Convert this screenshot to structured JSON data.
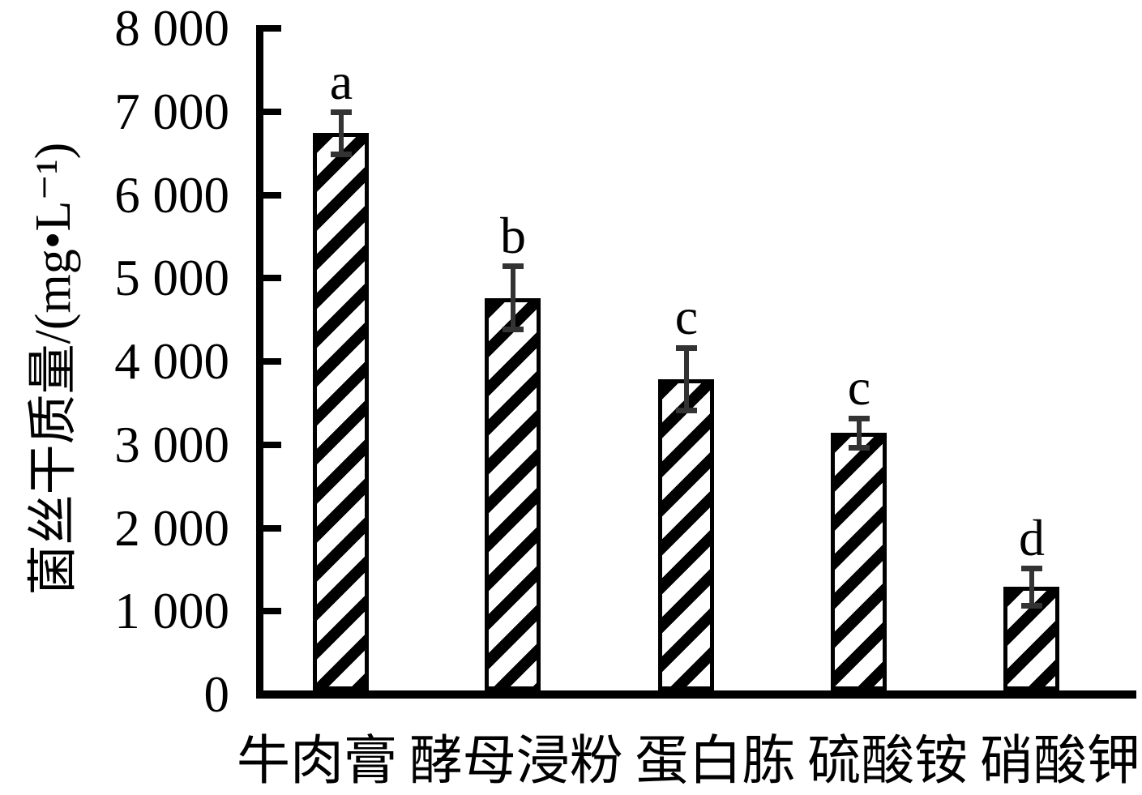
{
  "figure": {
    "background": "#ffffff",
    "text_color": "#000000"
  },
  "chart_data": {
    "type": "bar",
    "title": "",
    "xlabel": "",
    "ylabel": "菌丝干质量/(mg•L⁻¹)",
    "categories": [
      "牛肉膏",
      "酵母浸粉",
      "蛋白胨",
      "硫酸铵",
      "硝酸钾"
    ],
    "values": [
      6740,
      4760,
      3790,
      3140,
      1290
    ],
    "errors": [
      250,
      380,
      375,
      175,
      220
    ],
    "sig_letters": [
      "a",
      "b",
      "c",
      "c",
      "d"
    ],
    "ylim": [
      0,
      8000
    ],
    "ytick_step": 1000,
    "ytick_labels": [
      "0",
      "1 000",
      "2 000",
      "3 000",
      "4 000",
      "5 000",
      "6 000",
      "7 000",
      "8 000"
    ],
    "grid": false,
    "legend": null,
    "bar_fill": "diagonal-hatch",
    "bar_border_color": "#000000",
    "hatch_color": "#000000",
    "error_bar_color": "#333333"
  }
}
